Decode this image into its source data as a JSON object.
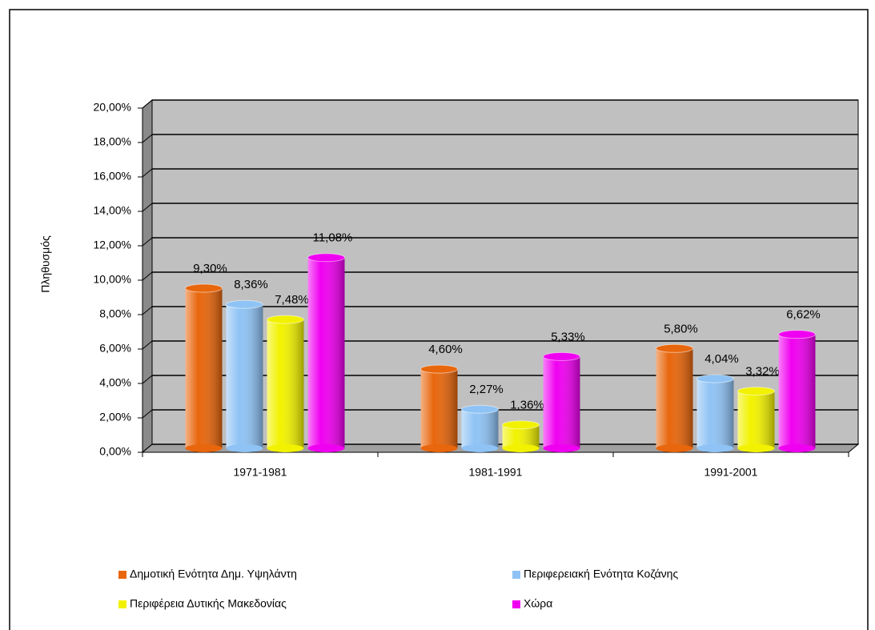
{
  "chart_data": {
    "type": "bar",
    "y_label": "Πληθυσμός",
    "categories": [
      "1971-1981",
      "1981-1991",
      "1991-2001"
    ],
    "series": [
      {
        "name": "Δημοτική Ενότητα Δημ. Υψηλάντη",
        "color": "#e8660c",
        "values": [
          9.3,
          4.6,
          5.8
        ],
        "value_labels": [
          "9,30%",
          "4,60%",
          "5,80%"
        ]
      },
      {
        "name": "Περιφερειακή Ενότητα Κοζάνης",
        "color": "#8fc3f5",
        "values": [
          8.36,
          2.27,
          4.04
        ],
        "value_labels": [
          "8,36%",
          "2,27%",
          "4,04%"
        ]
      },
      {
        "name": "Περιφέρεια Δυτικής Μακεδονίας",
        "color": "#f2f200",
        "values": [
          7.48,
          1.36,
          3.32
        ],
        "value_labels": [
          "7,48%",
          "1,36%",
          "3,32%"
        ]
      },
      {
        "name": "Χώρα",
        "color": "#f000f0",
        "values": [
          11.08,
          5.33,
          6.62
        ],
        "value_labels": [
          "11,08%",
          "5,33%",
          "6,62%"
        ]
      }
    ],
    "ylim": [
      0,
      20
    ],
    "yticks": [
      {
        "value": 0,
        "label": "0,00%"
      },
      {
        "value": 2,
        "label": "2,00%"
      },
      {
        "value": 4,
        "label": "4,00%"
      },
      {
        "value": 6,
        "label": "6,00%"
      },
      {
        "value": 8,
        "label": "8,00%"
      },
      {
        "value": 10,
        "label": "10,00%"
      },
      {
        "value": 12,
        "label": "12,00%"
      },
      {
        "value": 14,
        "label": "14,00%"
      },
      {
        "value": 16,
        "label": "16,00%"
      },
      {
        "value": 18,
        "label": "18,00%"
      },
      {
        "value": 20,
        "label": "20,00%"
      }
    ],
    "grid": true
  }
}
